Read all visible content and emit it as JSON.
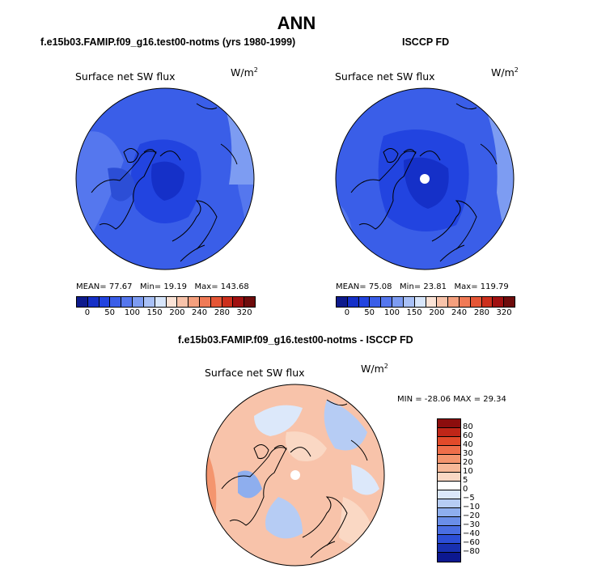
{
  "figure": {
    "title": "ANN"
  },
  "panels": [
    {
      "case_title": "f.e15b03.FAMIP.f09_g16.test00-notms (yrs 1980-1999)",
      "var_label": "Surface net SW flux",
      "unit_base": "W/m",
      "unit_exp": "2",
      "stats": {
        "mean_label": "MEAN=",
        "mean": "77.67",
        "min_label": "Min=",
        "min": "19.19",
        "max_label": "Max=",
        "max": "143.68"
      }
    },
    {
      "case_title": "ISCCP FD",
      "var_label": "Surface net SW flux",
      "unit_base": "W/m",
      "unit_exp": "2",
      "stats": {
        "mean_label": "MEAN=",
        "mean": "75.08",
        "min_label": "Min=",
        "min": "23.81",
        "max_label": "Max=",
        "max": "119.79"
      }
    },
    {
      "case_title": "f.e15b03.FAMIP.f09_g16.test00-notms - ISCCP FD",
      "var_label": "Surface net SW flux",
      "unit_base": "W/m",
      "unit_exp": "2",
      "stats_text": "MIN = -28.06 MAX =  29.34"
    }
  ],
  "colorbar_abs": {
    "colors": [
      "#0d1a8c",
      "#1530c8",
      "#2244e0",
      "#3a5ee8",
      "#5577ee",
      "#7d9cf2",
      "#a8c0f6",
      "#d8e6fb",
      "#fbe3d6",
      "#f8c3aa",
      "#f5a07e",
      "#f07a56",
      "#e55636",
      "#cc2f1c",
      "#a01010",
      "#6e0c0c"
    ],
    "tick_labels": [
      "0",
      "50",
      "100",
      "150",
      "200",
      "240",
      "280",
      "320"
    ]
  },
  "colorbar_diff": {
    "colors": [
      "#8c0d0d",
      "#c02618",
      "#e24a2a",
      "#ef6e4a",
      "#f4956e",
      "#f7b898",
      "#fad8c4",
      "#ffffff",
      "#dce8fa",
      "#b6ccf4",
      "#8eaeee",
      "#6a8ee8",
      "#4a6ee2",
      "#2c4ed6",
      "#1830b0",
      "#0c1890"
    ],
    "tick_labels": [
      "80",
      "60",
      "40",
      "30",
      "20",
      "10",
      "5",
      "0",
      "−5",
      "−10",
      "−20",
      "−30",
      "−40",
      "−60",
      "−80"
    ]
  },
  "chart_data": [
    {
      "type": "heatmap",
      "projection": "polar stereographic (north)",
      "title": "f.e15b03.FAMIP.f09_g16.test00-notms (yrs 1980-1999)",
      "variable": "Surface net SW flux",
      "units": "W/m2",
      "mean": 77.67,
      "min": 19.19,
      "max": 143.68,
      "levels": [
        0,
        25,
        50,
        75,
        100,
        125,
        150,
        175,
        200,
        220,
        240,
        260,
        280,
        300,
        320
      ]
    },
    {
      "type": "heatmap",
      "projection": "polar stereographic (north)",
      "title": "ISCCP FD",
      "variable": "Surface net SW flux",
      "units": "W/m2",
      "mean": 75.08,
      "min": 23.81,
      "max": 119.79,
      "levels": [
        0,
        25,
        50,
        75,
        100,
        125,
        150,
        175,
        200,
        220,
        240,
        260,
        280,
        300,
        320
      ]
    },
    {
      "type": "heatmap",
      "projection": "polar stereographic (north)",
      "title": "f.e15b03.FAMIP.f09_g16.test00-notms - ISCCP FD",
      "variable": "Surface net SW flux",
      "units": "W/m2",
      "min": -28.06,
      "max": 29.34,
      "levels": [
        -80,
        -60,
        -40,
        -30,
        -20,
        -10,
        -5,
        0,
        5,
        10,
        20,
        30,
        40,
        60,
        80
      ]
    }
  ]
}
